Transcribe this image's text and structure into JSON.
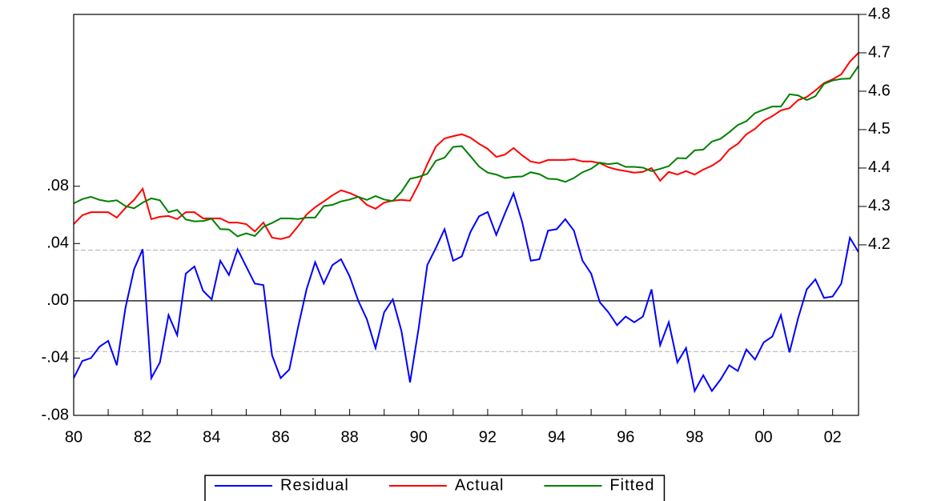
{
  "chart_data": {
    "type": "line",
    "categories": [
      "80",
      null,
      null,
      null,
      null,
      null,
      null,
      null,
      "82",
      null,
      null,
      null,
      null,
      null,
      null,
      null,
      "84",
      null,
      null,
      null,
      null,
      null,
      null,
      null,
      "86",
      null,
      null,
      null,
      null,
      null,
      null,
      null,
      "88",
      null,
      null,
      null,
      null,
      null,
      null,
      null,
      "90",
      null,
      null,
      null,
      null,
      null,
      null,
      null,
      "92",
      null,
      null,
      null,
      null,
      null,
      null,
      null,
      "94",
      null,
      null,
      null,
      null,
      null,
      null,
      null,
      "96",
      null,
      null,
      null,
      null,
      null,
      null,
      null,
      "98",
      null,
      null,
      null,
      null,
      null,
      null,
      null,
      "00",
      null,
      null,
      null,
      null,
      null,
      null,
      null,
      "02",
      null,
      null,
      null
    ],
    "series": [
      {
        "name": "Residual",
        "color": "#0000ff",
        "axis": "y",
        "values": [
          -0.054,
          -0.042,
          -0.04,
          -0.032,
          -0.028,
          -0.045,
          -0.005,
          0.022,
          0.036,
          -0.054,
          -0.043,
          -0.01,
          -0.024,
          0.019,
          0.024,
          0.007,
          0.001,
          0.028,
          0.018,
          0.036,
          0.024,
          0.012,
          0.011,
          -0.038,
          -0.054,
          -0.048,
          -0.019,
          0.008,
          0.027,
          0.012,
          0.025,
          0.029,
          0.017,
          0.0,
          -0.013,
          -0.033,
          -0.008,
          0.001,
          -0.021,
          -0.057,
          -0.019,
          0.025,
          0.037,
          0.05,
          0.028,
          0.031,
          0.048,
          0.059,
          0.062,
          0.046,
          0.061,
          0.075,
          0.055,
          0.028,
          0.029,
          0.049,
          0.05,
          0.057,
          0.049,
          0.028,
          0.019,
          -0.001,
          -0.008,
          -0.017,
          -0.011,
          -0.015,
          -0.011,
          0.008,
          -0.031,
          -0.015,
          -0.043,
          -0.033,
          -0.063,
          -0.052,
          -0.063,
          -0.055,
          -0.045,
          -0.049,
          -0.034,
          -0.041,
          -0.029,
          -0.025,
          -0.01,
          -0.036,
          -0.012,
          0.008,
          0.015,
          0.002,
          0.003,
          0.012,
          0.044,
          0.034
        ]
      },
      {
        "name": "Actual",
        "color": "#ff0000",
        "axis": "y2",
        "values": [
          4.254,
          4.277,
          4.285,
          4.285,
          4.285,
          4.271,
          4.296,
          4.317,
          4.346,
          4.267,
          4.273,
          4.275,
          4.267,
          4.285,
          4.285,
          4.269,
          4.269,
          4.269,
          4.258,
          4.258,
          4.254,
          4.235,
          4.258,
          4.219,
          4.215,
          4.221,
          4.248,
          4.279,
          4.298,
          4.313,
          4.329,
          4.342,
          4.335,
          4.325,
          4.304,
          4.294,
          4.31,
          4.315,
          4.317,
          4.315,
          4.358,
          4.41,
          4.456,
          4.477,
          4.483,
          4.488,
          4.479,
          4.463,
          4.45,
          4.429,
          4.435,
          4.452,
          4.433,
          4.417,
          4.413,
          4.421,
          4.421,
          4.421,
          4.423,
          4.417,
          4.417,
          4.413,
          4.402,
          4.396,
          4.392,
          4.388,
          4.39,
          4.4,
          4.367,
          4.39,
          4.383,
          4.392,
          4.383,
          4.396,
          4.406,
          4.421,
          4.448,
          4.463,
          4.488,
          4.502,
          4.523,
          4.535,
          4.55,
          4.556,
          4.577,
          4.585,
          4.602,
          4.621,
          4.631,
          4.644,
          4.677,
          4.7
        ]
      },
      {
        "name": "Fitted",
        "color": "#008000",
        "axis": "y2",
        "values": [
          4.308,
          4.319,
          4.325,
          4.317,
          4.313,
          4.316,
          4.301,
          4.295,
          4.31,
          4.321,
          4.316,
          4.285,
          4.291,
          4.266,
          4.261,
          4.262,
          4.268,
          4.241,
          4.24,
          4.222,
          4.23,
          4.223,
          4.247,
          4.257,
          4.269,
          4.269,
          4.267,
          4.271,
          4.271,
          4.301,
          4.304,
          4.313,
          4.318,
          4.325,
          4.317,
          4.327,
          4.318,
          4.314,
          4.338,
          4.372,
          4.377,
          4.385,
          4.419,
          4.427,
          4.455,
          4.457,
          4.431,
          4.404,
          4.388,
          4.383,
          4.374,
          4.377,
          4.378,
          4.389,
          4.384,
          4.372,
          4.371,
          4.364,
          4.374,
          4.389,
          4.398,
          4.414,
          4.41,
          4.413,
          4.403,
          4.403,
          4.401,
          4.392,
          4.398,
          4.405,
          4.426,
          4.425,
          4.446,
          4.448,
          4.469,
          4.476,
          4.493,
          4.512,
          4.522,
          4.543,
          4.552,
          4.56,
          4.56,
          4.592,
          4.589,
          4.577,
          4.587,
          4.619,
          4.628,
          4.632,
          4.633,
          4.666
        ]
      }
    ],
    "ylim": [
      -0.08,
      0.2
    ],
    "yticks": [
      {
        "value": -0.08,
        "label": "-.08"
      },
      {
        "value": -0.04,
        "label": "-.04"
      },
      {
        "value": 0,
        "label": ".00"
      },
      {
        "value": 0.04,
        "label": ".04"
      },
      {
        "value": 0.08,
        "label": ".08"
      }
    ],
    "y2lim": [
      3.756,
      4.8
    ],
    "y2ticks": [
      4.2,
      4.3,
      4.4,
      4.5,
      4.6,
      4.7,
      4.8
    ],
    "hlines": [
      {
        "value": 0,
        "style": "solid"
      },
      {
        "value": 0.0354,
        "style": "dashed"
      },
      {
        "value": -0.0354,
        "style": "dashed"
      }
    ],
    "legend": "bottom"
  }
}
